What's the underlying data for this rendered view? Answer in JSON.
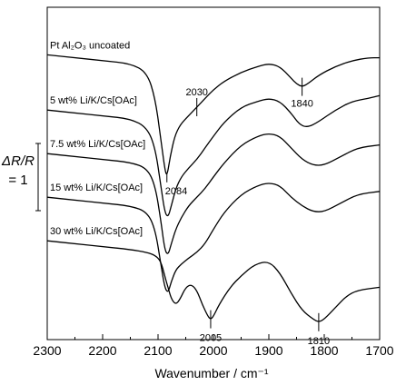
{
  "chart_data": {
    "type": "line",
    "xlabel": "Wavenumber / cm⁻¹",
    "ylabel": "",
    "xlim": [
      2300,
      1700
    ],
    "x_ticks": [
      "2300",
      "2200",
      "2100",
      "2000",
      "1900",
      "1800",
      "1700"
    ],
    "scale_bar": {
      "line1": "ΔR/R",
      "line2": "= 1"
    },
    "series": [
      {
        "label": "Pt Al₂O₃ uncoated",
        "x": [
          2300,
          2250,
          2200,
          2150,
          2120,
          2105,
          2095,
          2088,
          2084,
          2078,
          2070,
          2060,
          2045,
          2030,
          2015,
          2000,
          1980,
          1950,
          1920,
          1900,
          1880,
          1860,
          1850,
          1840,
          1830,
          1810,
          1780,
          1750,
          1720,
          1700
        ],
        "y": [
          8.1,
          8.0,
          7.9,
          7.8,
          7.5,
          6.6,
          5.2,
          4.2,
          3.9,
          4.6,
          5.3,
          5.7,
          6.0,
          6.3,
          6.6,
          6.9,
          7.2,
          7.5,
          7.7,
          7.8,
          7.7,
          7.3,
          7.1,
          7.0,
          7.1,
          7.4,
          7.7,
          7.9,
          8.0,
          8.0
        ]
      },
      {
        "label": "5 wt% Li/K/Cs[OAc]",
        "x": [
          2300,
          2250,
          2200,
          2150,
          2120,
          2105,
          2095,
          2088,
          2082,
          2076,
          2068,
          2058,
          2045,
          2030,
          2015,
          2000,
          1980,
          1950,
          1920,
          1900,
          1880,
          1860,
          1845,
          1830,
          1810,
          1780,
          1750,
          1720,
          1700
        ],
        "y": [
          6.2,
          6.1,
          6.0,
          5.9,
          5.6,
          4.9,
          3.6,
          2.7,
          2.5,
          2.9,
          3.5,
          3.9,
          4.2,
          4.5,
          4.9,
          5.3,
          5.8,
          6.3,
          6.5,
          6.6,
          6.5,
          6.1,
          5.7,
          5.6,
          5.8,
          6.2,
          6.5,
          6.6,
          6.7
        ]
      },
      {
        "label": "7.5 wt% Li/K/Cs[OAc]",
        "x": [
          2300,
          2250,
          2200,
          2150,
          2120,
          2105,
          2095,
          2088,
          2082,
          2076,
          2068,
          2058,
          2045,
          2030,
          2015,
          2000,
          1980,
          1950,
          1920,
          1900,
          1880,
          1860,
          1840,
          1820,
          1800,
          1770,
          1740,
          1700
        ],
        "y": [
          4.7,
          4.6,
          4.5,
          4.4,
          4.2,
          3.6,
          2.4,
          1.4,
          1.2,
          1.6,
          2.1,
          2.5,
          2.9,
          3.2,
          3.5,
          3.9,
          4.4,
          5.0,
          5.3,
          5.4,
          5.3,
          4.9,
          4.5,
          4.3,
          4.3,
          4.6,
          4.9,
          5.0
        ]
      },
      {
        "label": "15 wt% Li/K/Cs[OAc]",
        "x": [
          2300,
          2250,
          2200,
          2150,
          2120,
          2105,
          2095,
          2088,
          2082,
          2076,
          2068,
          2058,
          2045,
          2030,
          2015,
          2000,
          1980,
          1950,
          1920,
          1900,
          1880,
          1860,
          1840,
          1820,
          1800,
          1770,
          1740,
          1700
        ],
        "y": [
          3.2,
          3.1,
          3.0,
          2.9,
          2.7,
          2.1,
          0.9,
          0.1,
          -0.1,
          0.3,
          0.7,
          0.9,
          1.1,
          1.3,
          1.6,
          2.1,
          2.7,
          3.3,
          3.6,
          3.7,
          3.6,
          3.2,
          2.9,
          2.7,
          2.7,
          3.0,
          3.3,
          3.4
        ]
      },
      {
        "label": "30 wt% Li/K/Cs[OAc]",
        "x": [
          2300,
          2250,
          2200,
          2150,
          2120,
          2105,
          2095,
          2088,
          2082,
          2076,
          2068,
          2060,
          2050,
          2040,
          2030,
          2020,
          2010,
          2005,
          2000,
          1990,
          1970,
          1950,
          1925,
          1900,
          1880,
          1860,
          1840,
          1820,
          1810,
          1800,
          1780,
          1760,
          1740,
          1700
        ],
        "y": [
          1.7,
          1.6,
          1.5,
          1.4,
          1.3,
          1.2,
          1.0,
          0.5,
          0.1,
          -0.3,
          -0.5,
          -0.3,
          0.1,
          0.2,
          0.0,
          -0.5,
          -0.9,
          -1.0,
          -0.9,
          -0.5,
          0.1,
          0.5,
          0.9,
          1.0,
          0.6,
          -0.1,
          -0.7,
          -1.0,
          -1.1,
          -1.0,
          -0.6,
          -0.2,
          0.0,
          0.1
        ]
      }
    ],
    "annotations": [
      {
        "text": "2030",
        "x": 2030,
        "series": 0
      },
      {
        "text": "1840",
        "x": 1840,
        "series": 0
      },
      {
        "text": "2084",
        "x": 2084,
        "series": 0
      },
      {
        "text": "2005",
        "x": 2005,
        "series": 4
      },
      {
        "text": "1810",
        "x": 1810,
        "series": 4
      }
    ]
  }
}
